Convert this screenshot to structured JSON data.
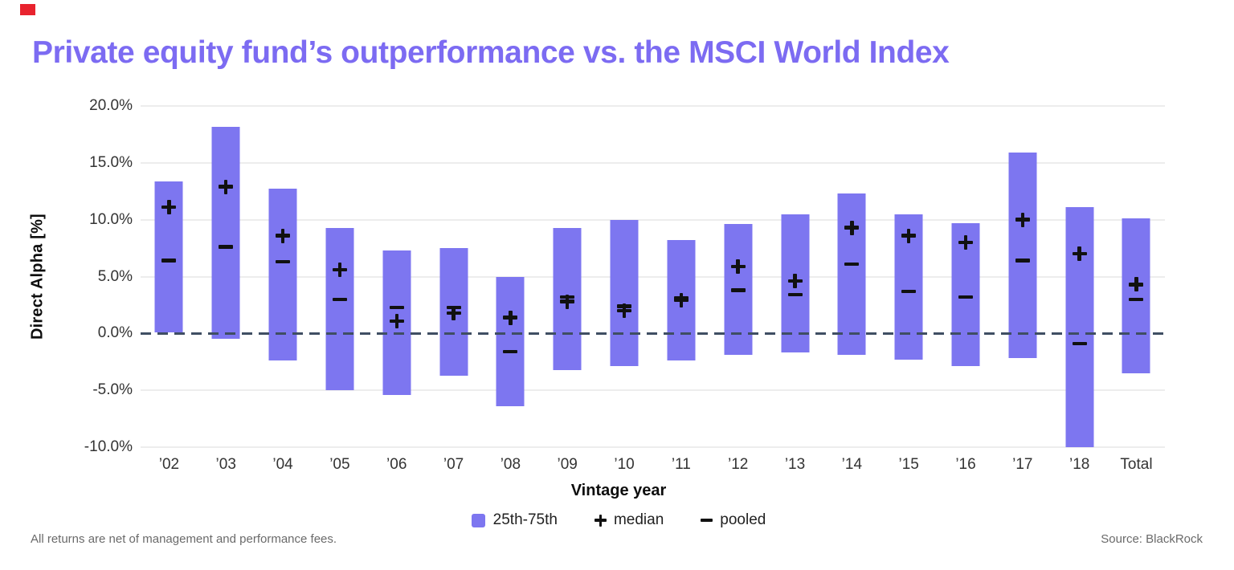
{
  "page": {
    "title": "Private equity fund’s outperformance vs. the MSCI World Index",
    "footnote": "All returns are net of management and performance fees.",
    "source": "Source: BlackRock"
  },
  "legend": {
    "range_label": "25th-75th",
    "median_label": "median",
    "pooled_label": "pooled"
  },
  "colors": {
    "bar": "#7D76F0",
    "title": "#7C6BF2",
    "zero_line": "#3F4E63",
    "gridline": "#EDEDED",
    "marker": "#111111",
    "corner_accent": "#E8232E",
    "axis_text": "#333333",
    "muted_text": "#6A6A6A"
  },
  "chart_data": {
    "type": "bar",
    "subtype": "floating-range-bars-with-markers",
    "title": "Private equity fund’s outperformance vs. the MSCI World Index",
    "xlabel": "Vintage year",
    "ylabel": "Direct Alpha [%]",
    "ylim": [
      -10,
      20
    ],
    "grid": true,
    "zero_line": "dashed",
    "legend_position": "bottom",
    "yticks": [
      {
        "value": 20,
        "label": "20.0%"
      },
      {
        "value": 15,
        "label": "15.0%"
      },
      {
        "value": 10,
        "label": "10.0%"
      },
      {
        "value": 5,
        "label": "5.0%"
      },
      {
        "value": 0,
        "label": "0.0%"
      },
      {
        "value": -5,
        "label": "-5.0%"
      },
      {
        "value": -10,
        "label": "-10.0%"
      }
    ],
    "categories": [
      "’02",
      "’03",
      "’04",
      "’05",
      "’06",
      "’07",
      "’08",
      "’09",
      "’10",
      "’11",
      "’12",
      "’13",
      "’14",
      "’15",
      "’16",
      "’17",
      "’18",
      "Total"
    ],
    "series": [
      {
        "name": "25th percentile (bar bottom)",
        "values": [
          0.1,
          -0.5,
          -2.4,
          -5.0,
          -5.4,
          -3.7,
          -6.4,
          -3.2,
          -2.9,
          -2.4,
          -1.9,
          -1.7,
          -1.9,
          -2.3,
          -2.9,
          -2.2,
          -10.0,
          -3.5
        ]
      },
      {
        "name": "75th percentile (bar top)",
        "values": [
          13.4,
          18.2,
          12.7,
          9.3,
          7.3,
          7.5,
          5.0,
          9.3,
          10.0,
          8.2,
          9.6,
          10.5,
          12.3,
          10.5,
          9.7,
          15.9,
          11.1,
          10.1
        ]
      },
      {
        "name": "median",
        "values": [
          11.1,
          12.9,
          8.6,
          5.6,
          1.1,
          1.8,
          1.4,
          2.8,
          2.0,
          2.9,
          5.9,
          4.6,
          9.3,
          8.6,
          8.0,
          10.0,
          7.0,
          4.3
        ]
      },
      {
        "name": "pooled",
        "values": [
          6.4,
          7.6,
          6.3,
          3.0,
          2.3,
          2.3,
          -1.6,
          3.2,
          2.4,
          3.1,
          3.8,
          3.4,
          6.1,
          3.7,
          3.2,
          6.4,
          -0.9,
          3.0
        ]
      }
    ]
  }
}
